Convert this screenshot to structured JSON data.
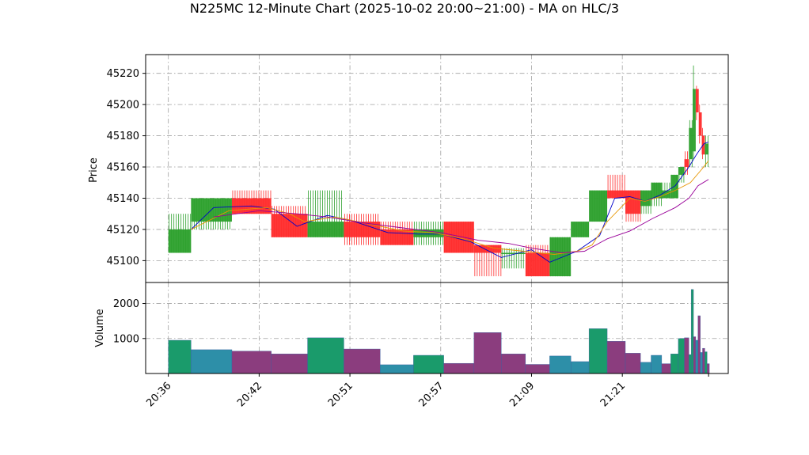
{
  "chart_data": [
    {
      "type": "candlestick",
      "title": "N225MC 12-Minute Chart (2025-10-02 20:00~21:00) - MA on HLC/3",
      "ylabel": "Price",
      "ylim": [
        45086,
        45232
      ],
      "yticks": [
        45100,
        45120,
        45140,
        45160,
        45180,
        45200,
        45220
      ],
      "xticks": [
        {
          "label": "20:36",
          "t": 0
        },
        {
          "label": "20:42",
          "t": 6
        },
        {
          "label": "20:51",
          "t": 12
        },
        {
          "label": "20:57",
          "t": 18
        },
        {
          "label": "21:09",
          "t": 24
        },
        {
          "label": "21:21",
          "t": 30
        }
      ],
      "grid": true,
      "up_color": "#2ca02c",
      "down_color": "#ff2b2b",
      "candles": [
        {
          "t0": 0.0,
          "t1": 1.5,
          "o": 45105,
          "h": 45130,
          "l": 45105,
          "c": 45120
        },
        {
          "t0": 1.5,
          "t1": 4.2,
          "o": 45125,
          "h": 45140,
          "l": 45120,
          "c": 45140
        },
        {
          "t0": 4.2,
          "t1": 6.8,
          "o": 45140,
          "h": 45145,
          "l": 45130,
          "c": 45130
        },
        {
          "t0": 6.8,
          "t1": 9.2,
          "o": 45130,
          "h": 45135,
          "l": 45115,
          "c": 45115
        },
        {
          "t0": 9.2,
          "t1": 11.6,
          "o": 45115,
          "h": 45145,
          "l": 45115,
          "c": 45125
        },
        {
          "t0": 11.6,
          "t1": 14.0,
          "o": 45125,
          "h": 45130,
          "l": 45110,
          "c": 45115
        },
        {
          "t0": 14.0,
          "t1": 16.2,
          "o": 45120,
          "h": 45125,
          "l": 45110,
          "c": 45110
        },
        {
          "t0": 16.2,
          "t1": 18.2,
          "o": 45115,
          "h": 45125,
          "l": 45110,
          "c": 45120
        },
        {
          "t0": 18.2,
          "t1": 20.2,
          "o": 45125,
          "h": 45125,
          "l": 45105,
          "c": 45105
        },
        {
          "t0": 20.2,
          "t1": 22.0,
          "o": 45110,
          "h": 45110,
          "l": 45090,
          "c": 45105
        },
        {
          "t0": 22.0,
          "t1": 23.6,
          "o": 45105,
          "h": 45108,
          "l": 45095,
          "c": 45105
        },
        {
          "t0": 23.6,
          "t1": 25.2,
          "o": 45105,
          "h": 45110,
          "l": 45090,
          "c": 45090
        },
        {
          "t0": 25.2,
          "t1": 26.6,
          "o": 45090,
          "h": 45115,
          "l": 45090,
          "c": 45115
        },
        {
          "t0": 26.6,
          "t1": 27.8,
          "o": 45115,
          "h": 45125,
          "l": 45115,
          "c": 45125
        },
        {
          "t0": 27.8,
          "t1": 29.0,
          "o": 45125,
          "h": 45145,
          "l": 45125,
          "c": 45145
        },
        {
          "t0": 29.0,
          "t1": 30.2,
          "o": 45145,
          "h": 45155,
          "l": 45140,
          "c": 45140
        },
        {
          "t0": 30.2,
          "t1": 31.2,
          "o": 45145,
          "h": 45145,
          "l": 45125,
          "c": 45130
        },
        {
          "t0": 31.2,
          "t1": 31.9,
          "o": 45135,
          "h": 45145,
          "l": 45130,
          "c": 45145
        },
        {
          "t0": 31.9,
          "t1": 32.6,
          "o": 45140,
          "h": 45150,
          "l": 45135,
          "c": 45150
        },
        {
          "t0": 32.6,
          "t1": 33.2,
          "o": 45140,
          "h": 45150,
          "l": 45140,
          "c": 45145
        },
        {
          "t0": 33.2,
          "t1": 33.7,
          "o": 45140,
          "h": 45155,
          "l": 45140,
          "c": 45155
        },
        {
          "t0": 33.7,
          "t1": 34.1,
          "o": 45155,
          "h": 45160,
          "l": 45150,
          "c": 45160
        },
        {
          "t0": 34.1,
          "t1": 34.4,
          "o": 45165,
          "h": 45170,
          "l": 45155,
          "c": 45160
        },
        {
          "t0": 34.4,
          "t1": 34.65,
          "o": 45165,
          "h": 45190,
          "l": 45160,
          "c": 45185
        },
        {
          "t0": 34.65,
          "t1": 34.85,
          "o": 45170,
          "h": 45225,
          "l": 45165,
          "c": 45210
        },
        {
          "t0": 34.85,
          "t1": 35.05,
          "o": 45210,
          "h": 45212,
          "l": 45190,
          "c": 45195
        },
        {
          "t0": 35.05,
          "t1": 35.25,
          "o": 45195,
          "h": 45200,
          "l": 45175,
          "c": 45180
        },
        {
          "t0": 35.25,
          "t1": 35.45,
          "o": 45180,
          "h": 45185,
          "l": 45165,
          "c": 45168
        },
        {
          "t0": 35.45,
          "t1": 35.7,
          "o": 45168,
          "h": 45180,
          "l": 45160,
          "c": 45175
        }
      ],
      "ma_series": [
        {
          "color": "#0000cc",
          "points": [
            [
              1.5,
              45120
            ],
            [
              3.0,
              45134
            ],
            [
              5.5,
              45135
            ],
            [
              7.0,
              45133
            ],
            [
              8.5,
              45122
            ],
            [
              10.5,
              45129
            ],
            [
              12.0,
              45126
            ],
            [
              14.5,
              45118
            ],
            [
              16.5,
              45117
            ],
            [
              18.0,
              45117
            ],
            [
              20.0,
              45112
            ],
            [
              22.0,
              45102
            ],
            [
              24.0,
              45107
            ],
            [
              25.2,
              45099
            ],
            [
              27.0,
              45106
            ],
            [
              28.5,
              45116
            ],
            [
              29.5,
              45140
            ],
            [
              30.5,
              45141
            ],
            [
              31.5,
              45138
            ],
            [
              32.5,
              45142
            ],
            [
              33.5,
              45148
            ],
            [
              34.4,
              45160
            ],
            [
              34.9,
              45168
            ],
            [
              35.4,
              45175
            ],
            [
              35.7,
              45176
            ]
          ]
        },
        {
          "color": "#e69500",
          "points": [
            [
              1.5,
              45120
            ],
            [
              4.0,
              45132
            ],
            [
              6.5,
              45134
            ],
            [
              8.0,
              45130
            ],
            [
              9.0,
              45125
            ],
            [
              11.0,
              45128
            ],
            [
              13.0,
              45124
            ],
            [
              15.5,
              45119
            ],
            [
              17.5,
              45118
            ],
            [
              19.5,
              45114
            ],
            [
              21.5,
              45108
            ],
            [
              23.5,
              45106
            ],
            [
              25.5,
              45104
            ],
            [
              27.0,
              45106
            ],
            [
              28.0,
              45110
            ],
            [
              29.0,
              45125
            ],
            [
              30.5,
              45140
            ],
            [
              31.5,
              45138
            ],
            [
              32.5,
              45141
            ],
            [
              33.5,
              45145
            ],
            [
              34.5,
              45150
            ],
            [
              35.2,
              45158
            ],
            [
              35.7,
              45164
            ]
          ]
        },
        {
          "color": "#990099",
          "points": [
            [
              3.0,
              45128
            ],
            [
              6.0,
              45132
            ],
            [
              8.5,
              45130
            ],
            [
              10.5,
              45128
            ],
            [
              13.0,
              45124
            ],
            [
              15.5,
              45121
            ],
            [
              18.0,
              45118
            ],
            [
              20.5,
              45113
            ],
            [
              22.5,
              45111
            ],
            [
              24.0,
              45108
            ],
            [
              26.0,
              45105
            ],
            [
              27.5,
              45106
            ],
            [
              29.0,
              45114
            ],
            [
              30.5,
              45119
            ],
            [
              32.0,
              45127
            ],
            [
              33.5,
              45134
            ],
            [
              34.4,
              45140
            ],
            [
              35.0,
              45148
            ],
            [
              35.7,
              45152
            ]
          ]
        }
      ]
    },
    {
      "type": "bar",
      "ylabel": "Volume",
      "ylim": [
        0,
        2600
      ],
      "yticks": [
        1000,
        2000
      ],
      "grid": true,
      "bars": [
        {
          "t0": 0.0,
          "t1": 1.5,
          "v": 950,
          "color": "#1a9b6b"
        },
        {
          "t0": 1.5,
          "t1": 4.2,
          "v": 680,
          "color": "#2d8fa8"
        },
        {
          "t0": 4.2,
          "t1": 6.8,
          "v": 640,
          "color": "#8b3d7e"
        },
        {
          "t0": 6.8,
          "t1": 9.2,
          "v": 560,
          "color": "#8b3d7e"
        },
        {
          "t0": 9.2,
          "t1": 11.6,
          "v": 1020,
          "color": "#1a9b6b"
        },
        {
          "t0": 11.6,
          "t1": 14.0,
          "v": 700,
          "color": "#8b3d7e"
        },
        {
          "t0": 14.0,
          "t1": 16.2,
          "v": 250,
          "color": "#2d8fa8"
        },
        {
          "t0": 16.2,
          "t1": 18.2,
          "v": 520,
          "color": "#1a9b6b"
        },
        {
          "t0": 18.2,
          "t1": 20.2,
          "v": 290,
          "color": "#8b3d7e"
        },
        {
          "t0": 20.2,
          "t1": 22.0,
          "v": 1170,
          "color": "#8b3d7e"
        },
        {
          "t0": 22.0,
          "t1": 23.6,
          "v": 560,
          "color": "#8b3d7e"
        },
        {
          "t0": 23.6,
          "t1": 25.2,
          "v": 260,
          "color": "#8b3d7e"
        },
        {
          "t0": 25.2,
          "t1": 26.6,
          "v": 500,
          "color": "#2d8fa8"
        },
        {
          "t0": 26.6,
          "t1": 27.8,
          "v": 340,
          "color": "#2d8fa8"
        },
        {
          "t0": 27.8,
          "t1": 29.0,
          "v": 1280,
          "color": "#1a9b6b"
        },
        {
          "t0": 29.0,
          "t1": 30.2,
          "v": 920,
          "color": "#8b3d7e"
        },
        {
          "t0": 30.2,
          "t1": 31.2,
          "v": 580,
          "color": "#8b3d7e"
        },
        {
          "t0": 31.2,
          "t1": 31.9,
          "v": 320,
          "color": "#2d8fa8"
        },
        {
          "t0": 31.9,
          "t1": 32.6,
          "v": 520,
          "color": "#2d8fa8"
        },
        {
          "t0": 32.6,
          "t1": 33.2,
          "v": 280,
          "color": "#8b3d7e"
        },
        {
          "t0": 33.2,
          "t1": 33.7,
          "v": 560,
          "color": "#1a9b6b"
        },
        {
          "t0": 33.7,
          "t1": 34.1,
          "v": 1000,
          "color": "#1a9b6b"
        },
        {
          "t0": 34.1,
          "t1": 34.4,
          "v": 1020,
          "color": "#8b3d7e"
        },
        {
          "t0": 34.4,
          "t1": 34.55,
          "v": 540,
          "color": "#1a9b6b"
        },
        {
          "t0": 34.55,
          "t1": 34.7,
          "v": 2400,
          "color": "#1a9b6b"
        },
        {
          "t0": 34.7,
          "t1": 34.85,
          "v": 1050,
          "color": "#8b3d7e"
        },
        {
          "t0": 34.85,
          "t1": 35.0,
          "v": 950,
          "color": "#2d8fa8"
        },
        {
          "t0": 35.0,
          "t1": 35.15,
          "v": 1650,
          "color": "#8b3d7e"
        },
        {
          "t0": 35.15,
          "t1": 35.3,
          "v": 600,
          "color": "#2d8fa8"
        },
        {
          "t0": 35.3,
          "t1": 35.45,
          "v": 720,
          "color": "#8b3d7e"
        },
        {
          "t0": 35.45,
          "t1": 35.6,
          "v": 620,
          "color": "#1a9b6b"
        },
        {
          "t0": 35.6,
          "t1": 35.75,
          "v": 280,
          "color": "#8b3d7e"
        }
      ]
    }
  ]
}
